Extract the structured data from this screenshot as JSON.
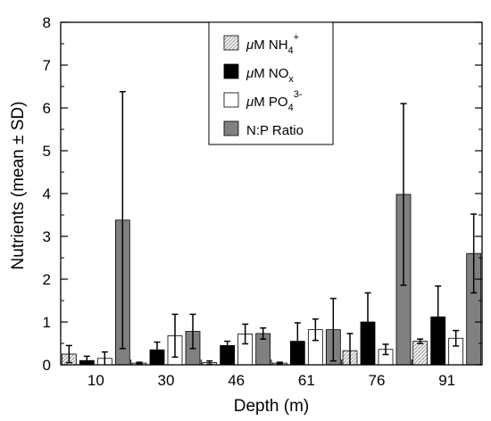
{
  "chart_data": {
    "type": "bar",
    "xlabel": "Depth (m)",
    "ylabel": "Nutrients (mean ± SD)",
    "ylim": [
      0,
      8
    ],
    "yticks": [
      "0",
      "1",
      "2",
      "3",
      "4",
      "5",
      "6",
      "7",
      "8"
    ],
    "categories": [
      "10",
      "30",
      "46",
      "61",
      "76",
      "91"
    ],
    "legend_position": "top-center",
    "grid": false,
    "series": [
      {
        "key": "nh4",
        "name": "μM NH4+",
        "label_parts": {
          "prefix": "μ",
          "main": "M NH",
          "sub": "4",
          "sup": "+"
        },
        "fill": "hatched-light",
        "values": [
          0.25,
          0.04,
          0.05,
          0.04,
          0.33,
          0.55
        ],
        "sd": [
          0.2,
          0.02,
          0.04,
          0.02,
          0.4,
          0.05
        ]
      },
      {
        "key": "nox",
        "name": "μM NOx",
        "label_parts": {
          "prefix": "μ",
          "main": "M NO",
          "sub": "x",
          "sup": ""
        },
        "fill": "#000000",
        "values": [
          0.1,
          0.35,
          0.45,
          0.55,
          1.0,
          1.12
        ],
        "sd": [
          0.1,
          0.18,
          0.1,
          0.43,
          0.68,
          0.72
        ]
      },
      {
        "key": "po4",
        "name": "μM PO43-",
        "label_parts": {
          "prefix": "μ",
          "main": "M PO",
          "sub": "4",
          "sup": "3-"
        },
        "fill": "#ffffff",
        "values": [
          0.15,
          0.68,
          0.72,
          0.82,
          0.36,
          0.62
        ],
        "sd": [
          0.15,
          0.5,
          0.23,
          0.25,
          0.12,
          0.18
        ]
      },
      {
        "key": "np",
        "name": "N:P Ratio",
        "label_parts": {
          "prefix": "",
          "main": "N:P Ratio",
          "sub": "",
          "sup": ""
        },
        "fill": "#808080",
        "values": [
          3.38,
          0.78,
          0.73,
          0.82,
          3.98,
          2.6
        ],
        "sd": [
          3.0,
          0.4,
          0.13,
          0.73,
          2.12,
          0.92
        ]
      }
    ]
  }
}
